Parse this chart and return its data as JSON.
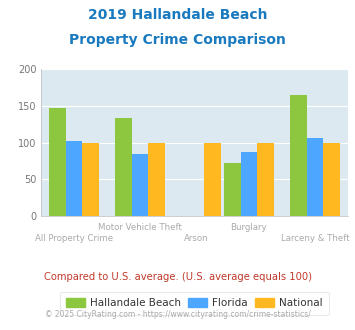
{
  "title_line1": "2019 Hallandale Beach",
  "title_line2": "Property Crime Comparison",
  "title_color": "#1a7abf",
  "categories": [
    "All Property Crime",
    "Motor Vehicle Theft",
    "Arson",
    "Burglary",
    "Larceny & Theft"
  ],
  "hallandale": [
    147,
    133,
    null,
    72,
    165
  ],
  "florida": [
    102,
    84,
    null,
    87,
    107
  ],
  "national": [
    100,
    100,
    100,
    100,
    100
  ],
  "color_hallandale": "#8dc63f",
  "color_florida": "#4da6ff",
  "color_national": "#ffb820",
  "ylim": [
    0,
    200
  ],
  "yticks": [
    0,
    50,
    100,
    150,
    200
  ],
  "chart_bg": "#dce9f0",
  "fig_bg": "#ffffff",
  "xlabel_color": "#aaaaaa",
  "footnote": "Compared to U.S. average. (U.S. average equals 100)",
  "footnote_color": "#c0392b",
  "copyright": "© 2025 CityRating.com - https://www.cityrating.com/crime-statistics/",
  "copyright_color": "#aaaaaa",
  "legend_labels": [
    "Hallandale Beach",
    "Florida",
    "National"
  ],
  "x_positions": [
    0.45,
    1.45,
    2.3,
    3.1,
    4.1
  ],
  "bar_width": 0.25
}
